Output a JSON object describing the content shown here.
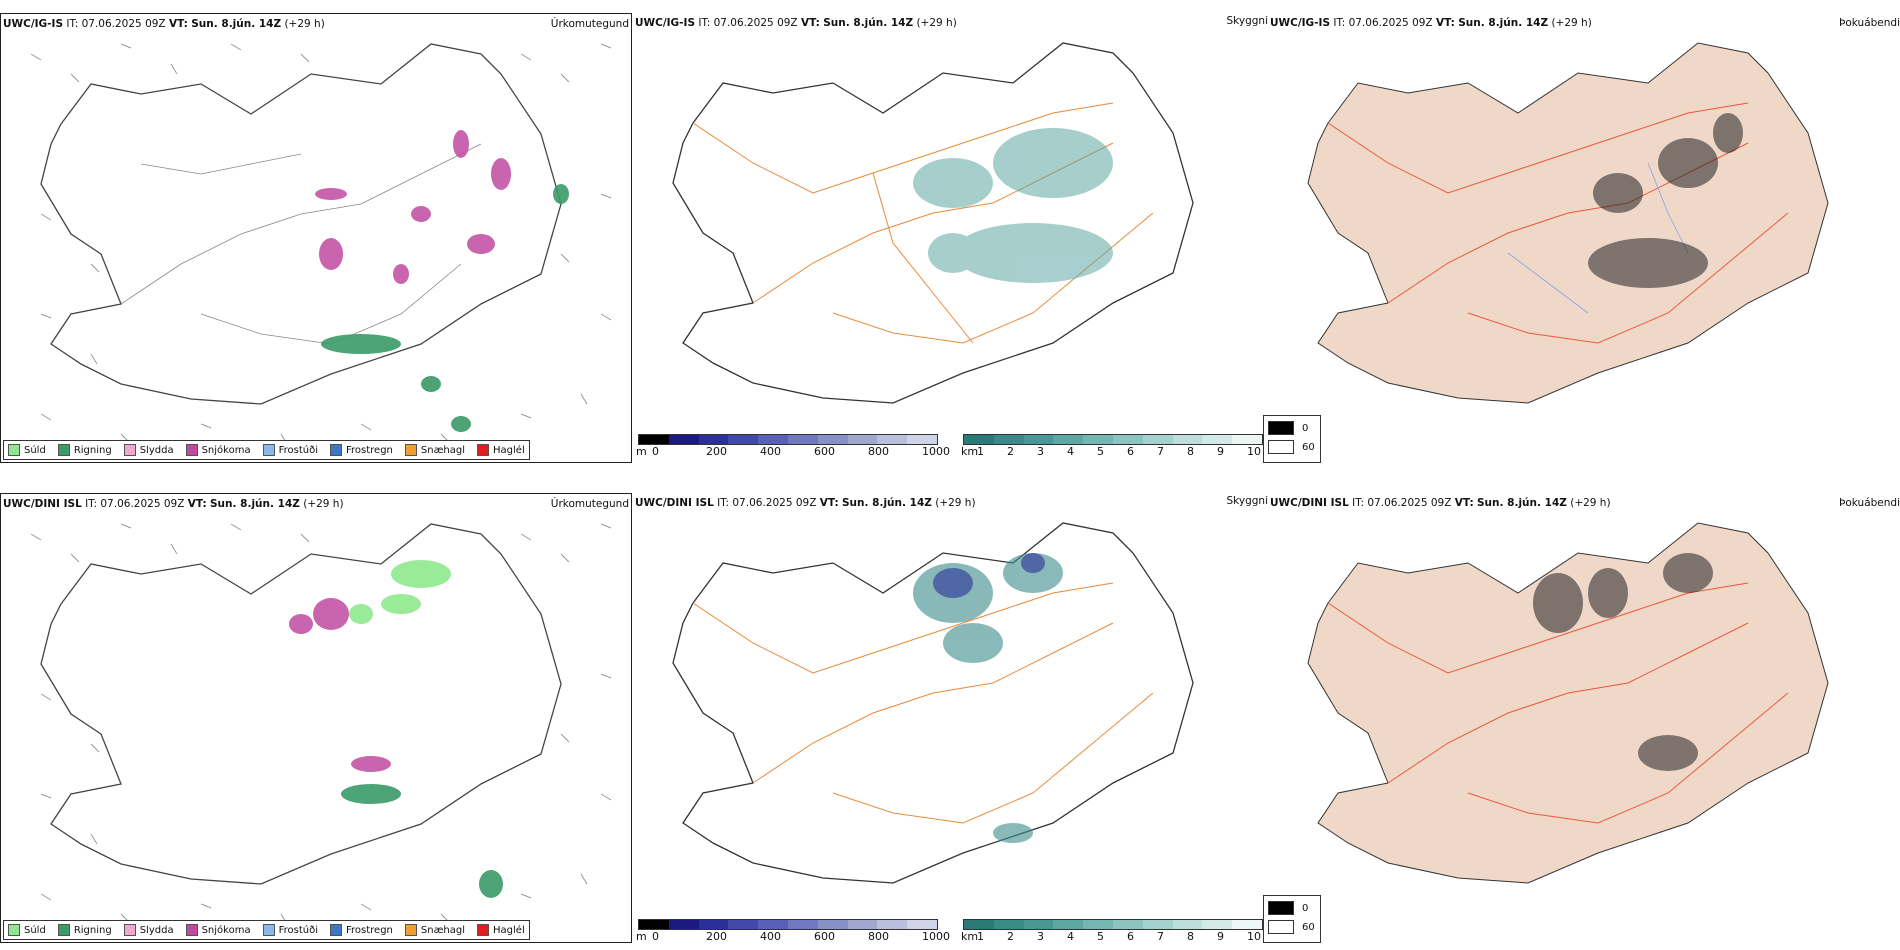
{
  "top": {
    "left": {
      "model": "UWC/IG-IS",
      "it_label": "IT:",
      "it_value": "07.06.2025 09Z",
      "vt_label": "VT:",
      "vt_value": "Sun. 8.jún. 14Z",
      "lead": "(+29 h)",
      "title": "Úrkomutegund"
    },
    "mid": {
      "model": "UWC/IG-IS",
      "it_label": "IT:",
      "it_value": "07.06.2025 09Z",
      "vt_label": "VT:",
      "vt_value": "Sun. 8.jún. 14Z",
      "lead": "(+29 h)",
      "title": "Skyggni"
    },
    "right": {
      "model": "UWC/IG-IS",
      "it_label": "IT:",
      "it_value": "07.06.2025 09Z",
      "vt_label": "VT:",
      "vt_value": "Sun. 8.jún. 14Z",
      "lead": "(+29 h)",
      "title": "Þokuábendi"
    }
  },
  "bottom": {
    "left": {
      "model": "UWC/DINI ISL",
      "it_label": "IT:",
      "it_value": "07.06.2025 09Z",
      "vt_label": "VT:",
      "vt_value": "Sun. 8.jún. 14Z",
      "lead": "(+29 h)",
      "title": "Úrkomutegund"
    },
    "mid": {
      "model": "UWC/DINI ISL",
      "it_label": "IT:",
      "it_value": "07.06.2025 09Z",
      "vt_label": "VT:",
      "vt_value": "Sun. 8.jún. 14Z",
      "lead": "(+29 h)",
      "title": "Skyggni"
    },
    "right": {
      "model": "UWC/DINI ISL",
      "it_label": "IT:",
      "it_value": "07.06.2025 09Z",
      "vt_label": "VT:",
      "vt_value": "Sun. 8.jún. 14Z",
      "lead": "(+29 h)",
      "title": "Þokuábendi"
    }
  },
  "precip_legend": [
    {
      "label": "Súld",
      "color": "#8ee88e"
    },
    {
      "label": "Rigning",
      "color": "#3a9a68"
    },
    {
      "label": "Slydda",
      "color": "#f0a8d0"
    },
    {
      "label": "Snjókoma",
      "color": "#c04aa0"
    },
    {
      "label": "Frostúði",
      "color": "#8ab8e8"
    },
    {
      "label": "Frostregn",
      "color": "#3a78c8"
    },
    {
      "label": "Snæhagl",
      "color": "#f0a030"
    },
    {
      "label": "Haglél",
      "color": "#e02020"
    }
  ],
  "elev_bar": {
    "unit": "m",
    "ticks": [
      "0",
      "200",
      "400",
      "600",
      "800",
      "1000"
    ],
    "colors": [
      "#000000",
      "#1a1a80",
      "#2a3098",
      "#4048a8",
      "#5860b8",
      "#7078c0",
      "#8890c8",
      "#a0a8d0",
      "#b8c0dc",
      "#d0d4e8"
    ]
  },
  "vis_bar": {
    "unit": "km",
    "ticks": [
      "1",
      "2",
      "3",
      "4",
      "5",
      "6",
      "7",
      "8",
      "9",
      "10"
    ],
    "colors": [
      "#2a7a78",
      "#3a8a88",
      "#4a9896",
      "#5ea8a4",
      "#74b6b2",
      "#8cc4c0",
      "#a4d2ce",
      "#bcdedc",
      "#d4eae8",
      "#ecf6f4"
    ]
  },
  "fog_legend": [
    {
      "label": "0",
      "color": "#000000"
    },
    {
      "label": "60",
      "color": "#ffffff"
    }
  ]
}
